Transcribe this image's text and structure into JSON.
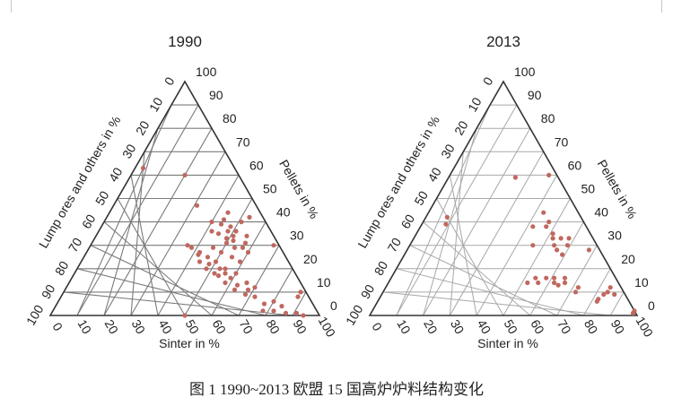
{
  "caption": "图 1   1990~2013  欧盟 15 国高炉炉料结构变化",
  "colors": {
    "grid_1990": "#7a7a7a",
    "grid_2013": "#a8a8a8",
    "frame": "#333333",
    "point": "#c0685f",
    "text": "#222222"
  },
  "chart_data": [
    {
      "type": "ternary-scatter",
      "title": "1990",
      "axes": {
        "bottom": "Sinter in %",
        "left": "Lump ores and others in %",
        "right": "Pellets in %"
      },
      "ticks": {
        "bottom": [
          "0",
          "10",
          "20",
          "30",
          "40",
          "50",
          "60",
          "70",
          "80",
          "90",
          "100"
        ],
        "left": [
          "0",
          "10",
          "20",
          "30",
          "40",
          "50",
          "60",
          "70",
          "80",
          "90",
          "100"
        ],
        "right": [
          "0",
          "10",
          "20",
          "30",
          "40",
          "50",
          "60",
          "70",
          "80",
          "90",
          "100"
        ]
      },
      "points": [
        [
          4,
          8
        ],
        [
          2,
          10
        ],
        [
          18,
          12
        ],
        [
          50,
          0
        ],
        [
          5,
          42
        ],
        [
          9,
          40
        ],
        [
          2,
          30
        ],
        [
          13,
          27
        ],
        [
          14,
          29
        ],
        [
          12,
          31
        ],
        [
          16,
          32
        ],
        [
          18,
          33
        ],
        [
          10,
          34
        ],
        [
          15,
          34
        ],
        [
          20,
          35
        ],
        [
          13,
          36
        ],
        [
          16,
          36
        ],
        [
          22,
          36
        ],
        [
          14,
          38
        ],
        [
          17,
          39
        ],
        [
          20,
          40
        ],
        [
          15,
          41
        ],
        [
          12,
          44
        ],
        [
          22,
          47
        ],
        [
          20,
          60
        ],
        [
          34,
          63
        ],
        [
          20,
          8
        ],
        [
          23,
          9
        ],
        [
          21,
          11
        ],
        [
          26,
          11
        ],
        [
          24,
          13
        ],
        [
          28,
          14
        ],
        [
          25,
          16
        ],
        [
          29,
          17
        ],
        [
          26,
          18
        ],
        [
          30,
          18
        ],
        [
          27,
          20
        ],
        [
          32,
          20
        ],
        [
          30,
          22
        ],
        [
          27,
          23
        ],
        [
          33,
          23
        ],
        [
          29,
          25
        ],
        [
          32,
          26
        ],
        [
          31,
          27
        ],
        [
          34,
          30
        ],
        [
          33,
          29
        ],
        [
          20,
          14
        ],
        [
          22,
          18
        ],
        [
          25,
          20
        ],
        [
          18,
          5
        ],
        [
          14,
          6
        ],
        [
          12,
          4
        ],
        [
          16,
          2
        ],
        [
          20,
          2
        ],
        [
          12,
          1
        ],
        [
          8,
          1
        ],
        [
          6,
          0
        ],
        [
          20,
          25
        ],
        [
          18,
          23
        ],
        [
          23,
          27
        ],
        [
          17,
          29
        ],
        [
          25,
          29
        ],
        [
          19,
          31
        ]
      ]
    },
    {
      "type": "ternary-scatter",
      "title": "2013",
      "axes": {
        "bottom": "Sinter in %",
        "left": "Lump ores and others in %",
        "right": "Pellets in %"
      },
      "ticks": {
        "bottom": [
          "0",
          "10",
          "20",
          "30",
          "40",
          "50",
          "60",
          "70",
          "80",
          "90",
          "100"
        ],
        "left": [
          "0",
          "10",
          "20",
          "30",
          "40",
          "50",
          "60",
          "70",
          "80",
          "90",
          "100"
        ],
        "right": [
          "0",
          "10",
          "20",
          "30",
          "40",
          "50",
          "60",
          "70",
          "80",
          "90",
          "100"
        ]
      },
      "points": [
        [
          4,
          9
        ],
        [
          6,
          10
        ],
        [
          4,
          12
        ],
        [
          52,
          39
        ],
        [
          50,
          42
        ],
        [
          16,
          59
        ],
        [
          3,
          60
        ],
        [
          15,
          38
        ],
        [
          20,
          38
        ],
        [
          15,
          33
        ],
        [
          24,
          30
        ],
        [
          15,
          26
        ],
        [
          16,
          28
        ],
        [
          16,
          30
        ],
        [
          11,
          30
        ],
        [
          12,
          33
        ],
        [
          14,
          35
        ],
        [
          13,
          40
        ],
        [
          13,
          44
        ],
        [
          9,
          33
        ],
        [
          4,
          28
        ],
        [
          30,
          14
        ],
        [
          34,
          14
        ],
        [
          30,
          16
        ],
        [
          26,
          16
        ],
        [
          23,
          16
        ],
        [
          24,
          14
        ],
        [
          23,
          13
        ],
        [
          20,
          14
        ],
        [
          19,
          16
        ],
        [
          8,
          9
        ],
        [
          11,
          7
        ],
        [
          12,
          6
        ],
        [
          1,
          1
        ],
        [
          0,
          2
        ],
        [
          18,
          10
        ],
        [
          16,
          12
        ]
      ]
    }
  ]
}
